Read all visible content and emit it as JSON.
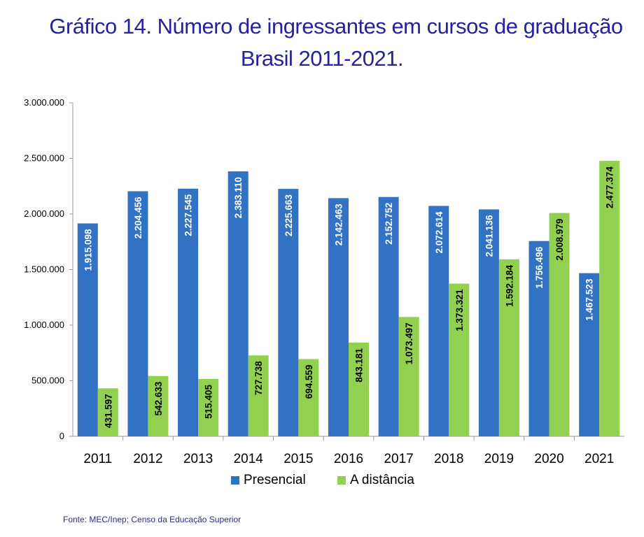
{
  "title_line1": "Gráfico 14. Número de ingressantes em cursos de graduação",
  "title_line2": "Brasil 2011-2021.",
  "source": "Fonte: MEC/Inep; Censo da Educação Superior",
  "colors": {
    "presencial": "#3272c4",
    "distancia": "#92d050",
    "title": "#23239b"
  },
  "chart_data": {
    "type": "bar",
    "categories": [
      "2011",
      "2012",
      "2013",
      "2014",
      "2015",
      "2016",
      "2017",
      "2018",
      "2019",
      "2020",
      "2021"
    ],
    "series": [
      {
        "name": "Presencial",
        "values": [
          1915098,
          2204456,
          2227545,
          2383110,
          2225663,
          2142463,
          2152752,
          2072614,
          2041136,
          1756496,
          1467523
        ],
        "labels": [
          "1.915.098",
          "2.204.456",
          "2.227.545",
          "2.383.110",
          "2.225.663",
          "2.142.463",
          "2.152.752",
          "2.072.614",
          "2.041.136",
          "1.756.496",
          "1.467.523"
        ]
      },
      {
        "name": "A distância",
        "values": [
          431597,
          542633,
          515405,
          727738,
          694559,
          843181,
          1073497,
          1373321,
          1592184,
          2008979,
          2477374
        ],
        "labels": [
          "431.597",
          "542.633",
          "515.405",
          "727.738",
          "694.559",
          "843.181",
          "1.073.497",
          "1.373.321",
          "1.592.184",
          "2.008.979",
          "2.477.374"
        ]
      }
    ],
    "ylim": [
      0,
      3000000
    ],
    "yticks": [
      0,
      500000,
      1000000,
      1500000,
      2000000,
      2500000,
      3000000
    ],
    "ytick_labels": [
      "0",
      "500.000",
      "1.000.000",
      "1.500.000",
      "2.000.000",
      "2.500.000",
      "3.000.000"
    ],
    "grid": false,
    "legend_position": "bottom"
  }
}
